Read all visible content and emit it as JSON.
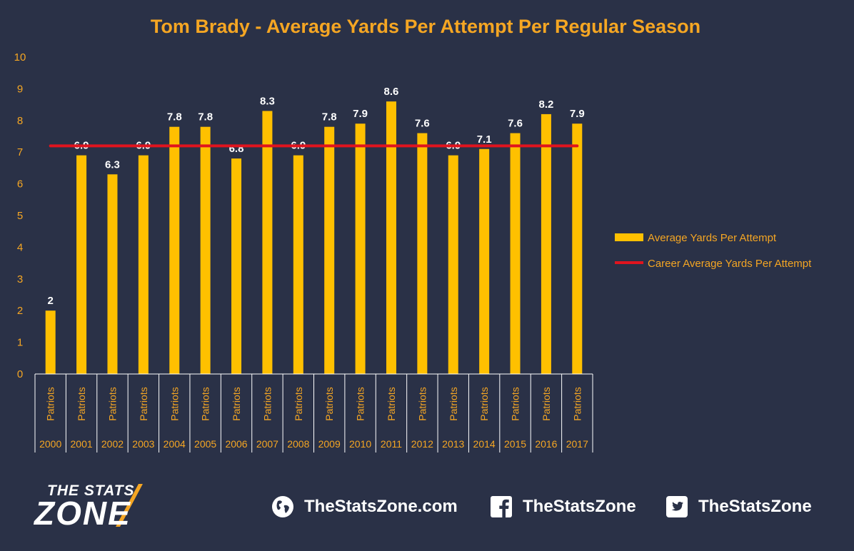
{
  "chart_data": {
    "type": "bar",
    "title": "Tom Brady - Average Yards Per Attempt Per Regular Season",
    "categories": [
      "2000",
      "2001",
      "2002",
      "2003",
      "2004",
      "2005",
      "2006",
      "2007",
      "2008",
      "2009",
      "2010",
      "2011",
      "2012",
      "2013",
      "2014",
      "2015",
      "2016",
      "2017"
    ],
    "team_labels": [
      "Patriots",
      "Patriots",
      "Patriots",
      "Patriots",
      "Patriots",
      "Patriots",
      "Patriots",
      "Patriots",
      "Patriots",
      "Patriots",
      "Patriots",
      "Patriots",
      "Patriots",
      "Patriots",
      "Patriots",
      "Patriots",
      "Patriots",
      "Patriots"
    ],
    "series": [
      {
        "name": "Average Yards Per Attempt",
        "type": "bar",
        "color": "#ffc000",
        "values": [
          2,
          6.9,
          6.3,
          6.9,
          7.8,
          7.8,
          6.8,
          8.3,
          6.9,
          7.8,
          7.9,
          8.6,
          7.6,
          6.9,
          7.1,
          7.6,
          8.2,
          7.9
        ]
      },
      {
        "name": "Career Average Yards Per Attempt",
        "type": "line",
        "color": "#e0141e",
        "value": 7.2
      }
    ],
    "ylim": [
      0,
      10
    ],
    "yticks": [
      0,
      1,
      2,
      3,
      4,
      5,
      6,
      7,
      8,
      9,
      10
    ],
    "grid": false,
    "legend_position": "right"
  },
  "footer": {
    "logo_line1": "THE STATS",
    "logo_line2": "ZONE",
    "website": "TheStatsZone.com",
    "facebook": "TheStatsZone",
    "twitter": "TheStatsZone"
  },
  "colors": {
    "background": "#2a3147",
    "accent": "#f5a623",
    "bar": "#ffc000",
    "career_line": "#e0141e"
  },
  "icons": {
    "website": "globe-icon",
    "facebook": "facebook-icon",
    "twitter": "twitter-icon"
  }
}
